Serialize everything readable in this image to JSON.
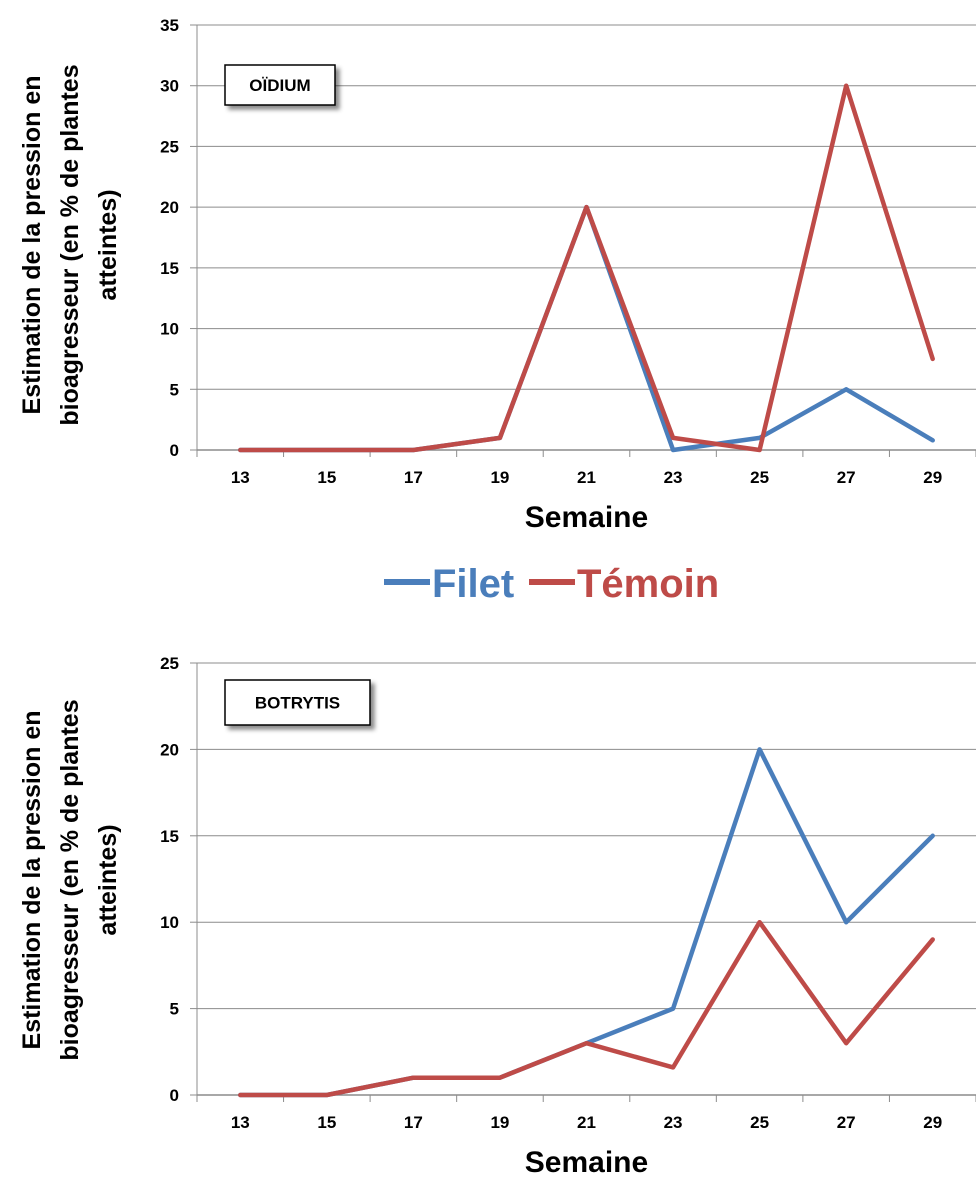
{
  "legend": {
    "items": [
      {
        "label": "Filet",
        "color": "#4a7ebb"
      },
      {
        "label": "Témoin",
        "color": "#be4b48"
      }
    ]
  },
  "chart_data": [
    {
      "type": "line",
      "title": "OÏDIUM",
      "xlabel": "Semaine",
      "ylabel_lines": [
        "Estimation de la pression en",
        "bioagresseur (en % de plantes",
        "atteintes)"
      ],
      "x": [
        13,
        15,
        17,
        19,
        21,
        23,
        25,
        27,
        29
      ],
      "ylim": [
        0,
        35
      ],
      "yticks": [
        0,
        5,
        10,
        15,
        20,
        25,
        30,
        35
      ],
      "grid": true,
      "series": [
        {
          "name": "Filet",
          "color": "#4a7ebb",
          "values": [
            0,
            0,
            0,
            1,
            20,
            0,
            1,
            5,
            0.8
          ]
        },
        {
          "name": "Témoin",
          "color": "#be4b48",
          "values": [
            0,
            0,
            0,
            1,
            20,
            1,
            0,
            30,
            7.5
          ]
        }
      ]
    },
    {
      "type": "line",
      "title": "BOTRYTIS",
      "xlabel": "Semaine",
      "ylabel_lines": [
        "Estimation de la pression en",
        "bioagresseur (en % de plantes",
        "atteintes)"
      ],
      "x": [
        13,
        15,
        17,
        19,
        21,
        23,
        25,
        27,
        29
      ],
      "ylim": [
        0,
        25
      ],
      "yticks": [
        0,
        5,
        10,
        15,
        20,
        25
      ],
      "grid": true,
      "series": [
        {
          "name": "Filet",
          "color": "#4a7ebb",
          "values": [
            0,
            0,
            1,
            1,
            3,
            5,
            20,
            10,
            15
          ]
        },
        {
          "name": "Témoin",
          "color": "#be4b48",
          "values": [
            0,
            0,
            1,
            1,
            3,
            1.6,
            10,
            3,
            9
          ]
        }
      ]
    }
  ]
}
